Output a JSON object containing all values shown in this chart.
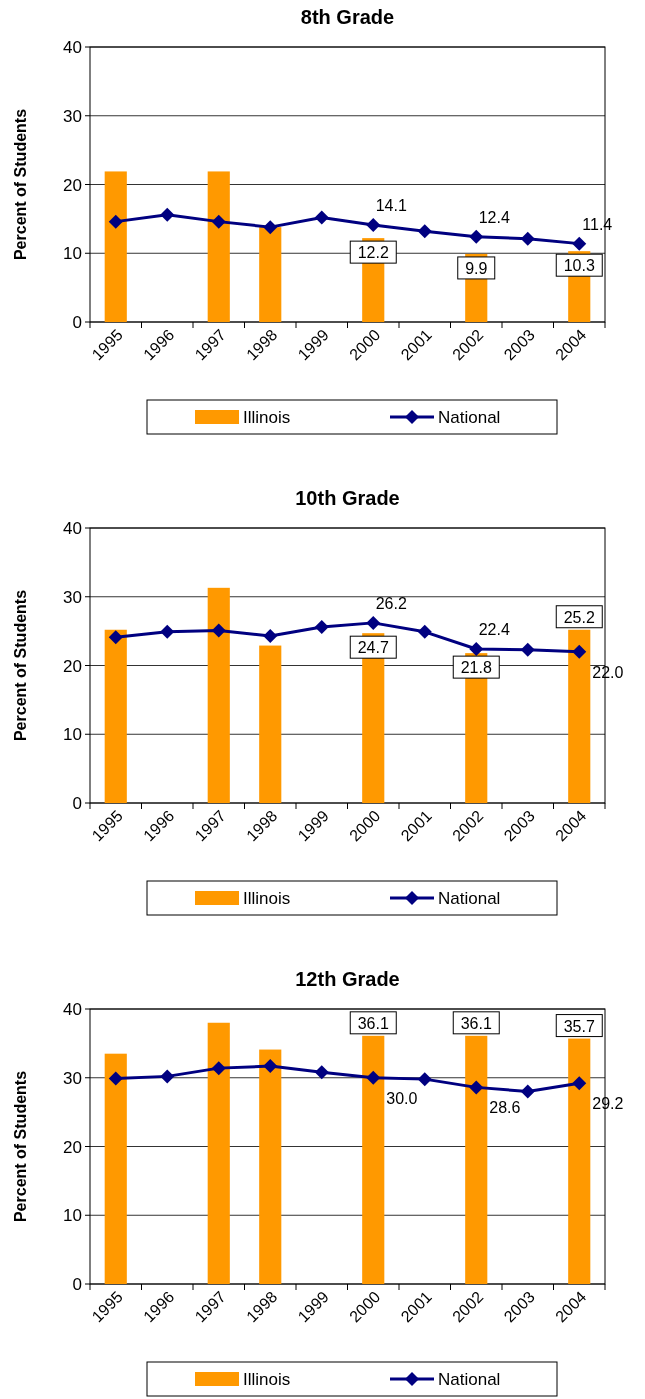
{
  "chart_data": [
    {
      "type": "bar",
      "title": "8th Grade",
      "ylabel": "Percent of Students",
      "categories": [
        "1995",
        "1996",
        "1997",
        "1998",
        "1999",
        "2000",
        "2001",
        "2002",
        "2003",
        "2004"
      ],
      "series": [
        {
          "name": "Illinois",
          "color": "#ff9900",
          "values": [
            21.9,
            null,
            21.9,
            13.8,
            null,
            12.2,
            null,
            9.9,
            null,
            10.3
          ],
          "value_labels": [
            null,
            null,
            null,
            null,
            null,
            "12.2",
            null,
            "9.9",
            null,
            "10.3"
          ]
        },
        {
          "name": "National",
          "type": "line",
          "color": "#000080",
          "values": [
            14.6,
            15.6,
            14.6,
            13.8,
            15.2,
            14.1,
            13.2,
            12.4,
            12.1,
            11.4
          ],
          "value_labels": [
            null,
            null,
            null,
            null,
            null,
            "14.1",
            null,
            "12.4",
            null,
            "11.4"
          ]
        }
      ],
      "ylim": [
        0,
        40
      ],
      "yticks": [
        0,
        10,
        20,
        30,
        40
      ],
      "grid": "y",
      "legend": "bottom",
      "marker": "diamond"
    },
    {
      "type": "bar",
      "title": "10th Grade",
      "ylabel": "Percent of Students",
      "categories": [
        "1995",
        "1996",
        "1997",
        "1998",
        "1999",
        "2000",
        "2001",
        "2002",
        "2003",
        "2004"
      ],
      "series": [
        {
          "name": "Illinois",
          "color": "#ff9900",
          "values": [
            25.2,
            null,
            31.3,
            22.9,
            null,
            24.7,
            null,
            21.8,
            null,
            25.2
          ],
          "value_labels": [
            null,
            null,
            null,
            null,
            null,
            "24.7",
            null,
            "21.8",
            null,
            "25.2"
          ]
        },
        {
          "name": "National",
          "type": "line",
          "color": "#000080",
          "values": [
            24.1,
            24.9,
            25.1,
            24.3,
            25.6,
            26.2,
            24.9,
            22.4,
            22.3,
            22.0
          ],
          "value_labels": [
            null,
            null,
            null,
            null,
            null,
            "26.2",
            null,
            "22.4",
            null,
            "22.0"
          ]
        }
      ],
      "ylim": [
        0,
        40
      ],
      "yticks": [
        0,
        10,
        20,
        30,
        40
      ],
      "grid": "y",
      "legend": "bottom",
      "marker": "diamond"
    },
    {
      "type": "bar",
      "title": "12th Grade",
      "ylabel": "Percent of Students",
      "categories": [
        "1995",
        "1996",
        "1997",
        "1998",
        "1999",
        "2000",
        "2001",
        "2002",
        "2003",
        "2004"
      ],
      "series": [
        {
          "name": "Illinois",
          "color": "#ff9900",
          "values": [
            33.5,
            null,
            38.0,
            34.1,
            null,
            36.1,
            null,
            36.1,
            null,
            35.7
          ],
          "value_labels": [
            null,
            null,
            null,
            null,
            null,
            "36.1",
            null,
            "36.1",
            null,
            "35.7"
          ]
        },
        {
          "name": "National",
          "type": "line",
          "color": "#000080",
          "values": [
            29.9,
            30.2,
            31.4,
            31.7,
            30.8,
            30.0,
            29.8,
            28.6,
            28.0,
            29.2
          ],
          "value_labels": [
            null,
            null,
            null,
            null,
            null,
            "30.0",
            null,
            "28.6",
            null,
            "29.2"
          ]
        }
      ],
      "ylim": [
        0,
        40
      ],
      "yticks": [
        0,
        10,
        20,
        30,
        40
      ],
      "grid": "y",
      "legend": "bottom",
      "marker": "diamond"
    }
  ]
}
